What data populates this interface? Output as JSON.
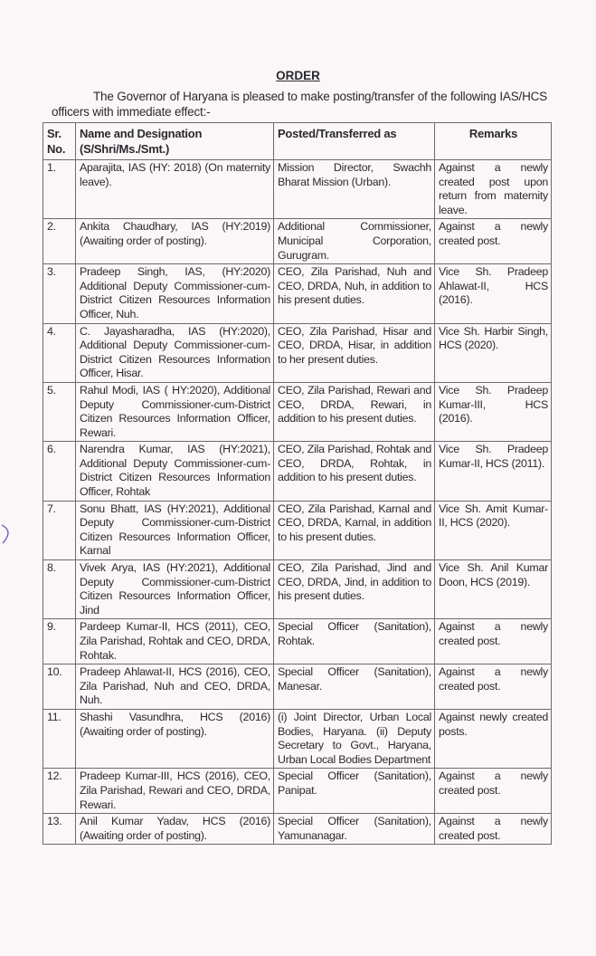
{
  "title": "ORDER",
  "intro": "The Governor of Haryana is pleased to make posting/transfer of the following IAS/HCS officers with immediate effect:-",
  "headers": {
    "sr": "Sr. No.",
    "name": "Name and Designation (S/Shri/Ms./Smt.)",
    "posted": "Posted/Transferred as",
    "remarks": "Remarks"
  },
  "rows": [
    {
      "sr": "1.",
      "name": "Aparajita, IAS (HY: 2018) (On maternity leave).",
      "posted": "Mission Director, Swachh Bharat Mission (Urban).",
      "remarks": "Against a newly created post upon return from maternity leave."
    },
    {
      "sr": "2.",
      "name": "Ankita Chaudhary, IAS (HY:2019) (Awaiting order of posting).",
      "posted": "Additional Commissioner, Municipal Corporation, Gurugram.",
      "remarks": "Against a newly created post."
    },
    {
      "sr": "3.",
      "name": "Pradeep Singh, IAS, (HY:2020) Additional Deputy Commissioner-cum-District Citizen Resources Information Officer, Nuh.",
      "posted": "CEO, Zila Parishad, Nuh and CEO, DRDA, Nuh, in addition to his present duties.",
      "remarks": "Vice Sh. Pradeep Ahlawat-II, HCS (2016)."
    },
    {
      "sr": "4.",
      "name": "C. Jayasharadha, IAS (HY:2020), Additional Deputy Commissioner-cum-District Citizen Resources Information Officer, Hisar.",
      "posted": "CEO, Zila Parishad, Hisar and CEO, DRDA, Hisar, in addition to her present duties.",
      "remarks": "Vice Sh. Harbir Singh, HCS (2020)."
    },
    {
      "sr": "5.",
      "name": "Rahul Modi, IAS ( HY:2020), Additional Deputy Commissioner-cum-District Citizen Resources Information Officer, Rewari.",
      "posted": "CEO, Zila Parishad, Rewari and CEO, DRDA, Rewari, in addition to his present duties.",
      "remarks": "Vice Sh. Pradeep Kumar-III, HCS (2016)."
    },
    {
      "sr": "6.",
      "name": "Narendra Kumar, IAS (HY:2021), Additional Deputy Commissioner-cum-District Citizen Resources Information Officer, Rohtak",
      "posted": "CEO, Zila Parishad, Rohtak and CEO, DRDA, Rohtak, in addition to his present duties.",
      "remarks": "Vice Sh. Pradeep Kumar-II, HCS (2011)."
    },
    {
      "sr": "7.",
      "name": "Sonu Bhatt, IAS (HY:2021), Additional Deputy Commissioner-cum-District Citizen Resources Information Officer, Karnal",
      "posted": "CEO, Zila Parishad, Karnal and CEO, DRDA, Karnal, in addition to his present duties.",
      "remarks": "Vice Sh. Amit Kumar-II, HCS (2020)."
    },
    {
      "sr": "8.",
      "name": "Vivek Arya, IAS (HY:2021), Additional Deputy Commissioner-cum-District Citizen Resources Information Officer, Jind",
      "posted": "CEO, Zila Parishad, Jind and CEO, DRDA, Jind, in addition to his present duties.",
      "remarks": "Vice Sh. Anil Kumar Doon, HCS (2019)."
    },
    {
      "sr": "9.",
      "name": "Pardeep Kumar-II, HCS (2011), CEO, Zila Parishad, Rohtak and CEO, DRDA, Rohtak.",
      "posted": "Special Officer (Sanitation), Rohtak.",
      "remarks": "Against a newly created post."
    },
    {
      "sr": "10.",
      "name": "Pradeep Ahlawat-II, HCS (2016), CEO, Zila Parishad, Nuh and CEO, DRDA, Nuh.",
      "posted": "Special Officer (Sanitation), Manesar.",
      "remarks": "Against a newly created post."
    },
    {
      "sr": "11.",
      "name": "Shashi Vasundhra, HCS (2016) (Awaiting order of posting).",
      "posted": "(i) Joint Director, Urban Local Bodies, Haryana. (ii) Deputy Secretary to Govt., Haryana, Urban Local Bodies Department",
      "remarks": "Against newly created posts."
    },
    {
      "sr": "12.",
      "name": "Pradeep Kumar-III, HCS (2016), CEO, Zila Parishad, Rewari and CEO, DRDA, Rewari.",
      "posted": "Special Officer (Sanitation), Panipat.",
      "remarks": "Against a newly created post."
    },
    {
      "sr": "13.",
      "name": "Anil Kumar Yadav, HCS (2016) (Awaiting order of posting).",
      "posted": "Special Officer (Sanitation), Yamunanagar.",
      "remarks": "Against a newly created post."
    }
  ]
}
